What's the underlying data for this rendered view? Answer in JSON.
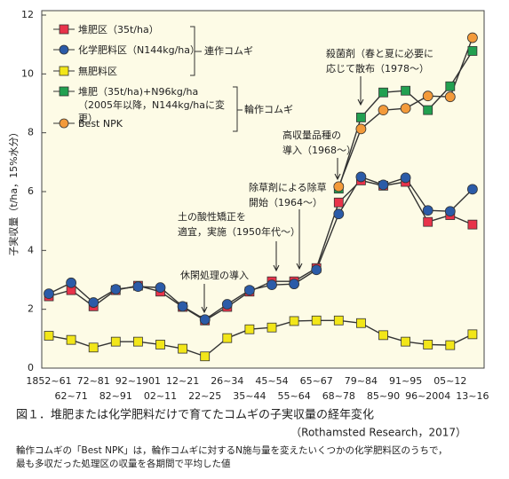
{
  "chart_data": {
    "type": "line",
    "y_label": "子実収量（t/ha，15%水分）",
    "categories": [
      "1852~61",
      "62~71",
      "72~81",
      "82~91",
      "92~1901",
      "02~11",
      "12~21",
      "22~25",
      "26~34",
      "35~44",
      "45~54",
      "55~64",
      "65~67",
      "68~78",
      "79~84",
      "85~90",
      "91~95",
      "96~2004",
      "05~12",
      "13~16"
    ],
    "ylim": [
      0,
      12
    ],
    "yticks": [
      0,
      2,
      4,
      6,
      8,
      10,
      12
    ],
    "grid": false,
    "series": [
      {
        "name": "堆肥区（35t/ha）",
        "color": "#e8334a",
        "marker": "square",
        "values": [
          2.44,
          2.65,
          2.1,
          2.65,
          2.8,
          2.6,
          2.08,
          1.62,
          2.08,
          2.6,
          2.95,
          2.95,
          3.4,
          5.63,
          6.38,
          6.2,
          6.33,
          4.97,
          5.2,
          4.88
        ]
      },
      {
        "name": "化学肥料区（N144kg/ha）",
        "color": "#2b5ba8",
        "marker": "circle",
        "values": [
          2.53,
          2.9,
          2.23,
          2.68,
          2.77,
          2.74,
          2.1,
          1.65,
          2.17,
          2.65,
          2.83,
          2.86,
          3.34,
          5.24,
          6.5,
          6.23,
          6.47,
          5.36,
          5.33,
          6.08
        ]
      },
      {
        "name": "無肥料区",
        "color": "#f2e619",
        "marker": "square",
        "values": [
          1.1,
          0.96,
          0.7,
          0.9,
          0.9,
          0.8,
          0.66,
          0.4,
          1.02,
          1.32,
          1.38,
          1.6,
          1.62,
          1.62,
          1.53,
          1.12,
          0.9,
          0.8,
          0.78,
          1.15
        ]
      },
      {
        "name": "堆肥（35t/ha)+N96kg/ha（2005年以降，N144kg/haに変更）",
        "color": "#22a050",
        "marker": "square",
        "values": [
          null,
          null,
          null,
          null,
          null,
          null,
          null,
          null,
          null,
          null,
          null,
          null,
          null,
          6.1,
          8.52,
          9.37,
          9.43,
          8.77,
          9.58,
          10.78
        ]
      },
      {
        "name": "Best NPK",
        "color": "#f39a3a",
        "marker": "circle",
        "values": [
          null,
          null,
          null,
          null,
          null,
          null,
          null,
          null,
          null,
          null,
          null,
          null,
          null,
          6.17,
          8.13,
          8.77,
          8.83,
          9.25,
          9.22,
          11.23
        ]
      }
    ],
    "legend_groups": [
      "連作コムギ",
      "輪作コムギ"
    ],
    "annotations": [
      {
        "text": [
          "休閑処理の導入"
        ]
      },
      {
        "text": [
          "土の酸性矯正を",
          "適宜，実施（1950年代～）"
        ]
      },
      {
        "text": [
          "除草剤による除草",
          "開始（1964～）"
        ]
      },
      {
        "text": [
          "高収量品種の",
          "導入（1968～）"
        ]
      },
      {
        "text": [
          "殺菌剤（春と夏に必要に",
          "応じて散布（1978～）"
        ]
      }
    ],
    "caption": "図１．堆肥または化学肥料だけで育てたコムギの子実収量の経年変化",
    "source": "（Rothamsted Research，2017）",
    "note": [
      "輪作コムギの「Best NPK」は，輪作コムギに対するN施与量を変えたいくつかの化学肥料区のうちで，",
      "最も多収だった処理区の収量を各期間で平均した値"
    ]
  }
}
